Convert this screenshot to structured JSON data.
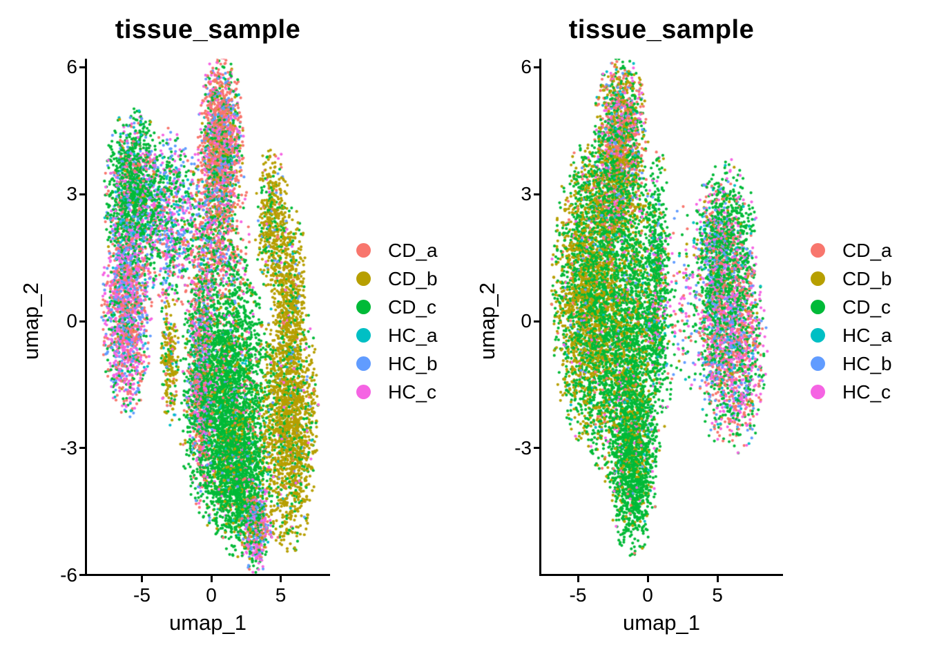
{
  "figure": {
    "background": "#ffffff"
  },
  "series": [
    {
      "label": "CD_a",
      "color": "#F8766D"
    },
    {
      "label": "CD_b",
      "color": "#B79F00"
    },
    {
      "label": "CD_c",
      "color": "#00BA38"
    },
    {
      "label": "HC_a",
      "color": "#00BFC4"
    },
    {
      "label": "HC_b",
      "color": "#619CFF"
    },
    {
      "label": "HC_c",
      "color": "#F564E3"
    }
  ],
  "chart_data": [
    {
      "type": "scatter",
      "title": "tissue_sample",
      "xlabel": "umap_1",
      "ylabel": "umap_2",
      "xlim": [
        -9.0,
        8.6
      ],
      "ylim": [
        -6.1,
        6.2
      ],
      "x_ticks": [
        -5,
        0,
        5
      ],
      "y_ticks": [
        6,
        3,
        0,
        -3,
        -6
      ],
      "grid": false,
      "legend_position": "right",
      "point_radius_px": 2.1,
      "clusters": [
        {
          "name": "left-lobe-upper",
          "cx": -5.6,
          "cy": 3.0,
          "sx": 0.95,
          "sy": 0.9,
          "n": 1500,
          "weights": [
            8,
            2,
            58,
            5,
            11,
            16
          ]
        },
        {
          "name": "left-lobe-lower",
          "cx": -6.1,
          "cy": 0.2,
          "sx": 0.8,
          "sy": 1.1,
          "n": 1500,
          "weights": [
            28,
            1,
            16,
            4,
            20,
            31
          ]
        },
        {
          "name": "left-mid-bridge",
          "cx": -3.1,
          "cy": 2.3,
          "sx": 0.85,
          "sy": 1.0,
          "n": 700,
          "weights": [
            14,
            2,
            36,
            6,
            22,
            20
          ]
        },
        {
          "name": "center-spike",
          "cx": 0.7,
          "cy": 4.3,
          "sx": 0.72,
          "sy": 0.9,
          "n": 1400,
          "weights": [
            46,
            6,
            18,
            2,
            13,
            15
          ]
        },
        {
          "name": "center-upper-mix",
          "cx": 0.2,
          "cy": 2.1,
          "sx": 1.15,
          "sy": 1.0,
          "n": 1000,
          "weights": [
            34,
            6,
            26,
            4,
            14,
            16
          ]
        },
        {
          "name": "olive-arm-upper",
          "cx": 4.4,
          "cy": 2.4,
          "sx": 0.55,
          "sy": 0.8,
          "n": 450,
          "weights": [
            5,
            70,
            18,
            1,
            3,
            3
          ]
        },
        {
          "name": "olive-arm-lower",
          "cx": 5.6,
          "cy": 0.7,
          "sx": 0.6,
          "sy": 0.9,
          "n": 500,
          "weights": [
            3,
            78,
            13,
            1,
            2,
            3
          ]
        },
        {
          "name": "central-green-mass",
          "cx": 1.0,
          "cy": -1.7,
          "sx": 1.5,
          "sy": 1.5,
          "n": 3200,
          "weights": [
            3,
            9,
            81,
            1,
            2,
            4
          ]
        },
        {
          "name": "green-mass-bottom",
          "cx": 1.9,
          "cy": -3.7,
          "sx": 1.05,
          "sy": 0.85,
          "n": 1100,
          "weights": [
            2,
            15,
            79,
            1,
            1,
            2
          ]
        },
        {
          "name": "olive-right-mass",
          "cx": 5.6,
          "cy": -2.3,
          "sx": 0.95,
          "sy": 1.4,
          "n": 1900,
          "weights": [
            2,
            76,
            17,
            1,
            2,
            2
          ]
        },
        {
          "name": "pink-fringe",
          "cx": -0.75,
          "cy": -1.3,
          "sx": 0.45,
          "sy": 1.4,
          "n": 650,
          "weights": [
            32,
            3,
            17,
            5,
            16,
            27
          ]
        },
        {
          "name": "bottom-tip",
          "cx": 3.2,
          "cy": -4.9,
          "sx": 0.55,
          "sy": 0.5,
          "n": 480,
          "weights": [
            20,
            8,
            22,
            6,
            20,
            24
          ]
        },
        {
          "name": "olive-stripe-left",
          "cx": -3.0,
          "cy": -0.9,
          "sx": 0.3,
          "sy": 0.7,
          "n": 230,
          "weights": [
            5,
            68,
            16,
            2,
            4,
            5
          ]
        }
      ]
    },
    {
      "type": "scatter",
      "title": "tissue_sample",
      "xlabel": "umap_1",
      "ylabel": "umap_2",
      "xlim": [
        -7.7,
        9.6
      ],
      "ylim": [
        -5.9,
        6.2
      ],
      "x_ticks": [
        -5,
        0,
        5
      ],
      "y_ticks": [
        6,
        3,
        0,
        -3
      ],
      "grid": false,
      "legend_position": "right",
      "point_radius_px": 2.1,
      "clusters": [
        {
          "name": "apex-mixed",
          "cx": -1.9,
          "cy": 4.5,
          "sx": 0.85,
          "sy": 0.8,
          "n": 1200,
          "weights": [
            26,
            22,
            33,
            3,
            7,
            9
          ]
        },
        {
          "name": "upper-mid",
          "cx": -2.4,
          "cy": 2.9,
          "sx": 1.15,
          "sy": 0.75,
          "n": 950,
          "weights": [
            11,
            30,
            49,
            2,
            3,
            5
          ]
        },
        {
          "name": "left-flank-olive",
          "cx": -4.4,
          "cy": 0.6,
          "sx": 1.1,
          "sy": 1.6,
          "n": 2300,
          "weights": [
            2,
            48,
            46,
            1,
            1,
            2
          ]
        },
        {
          "name": "core-green",
          "cx": -1.6,
          "cy": -0.5,
          "sx": 1.5,
          "sy": 1.7,
          "n": 2900,
          "weights": [
            2,
            22,
            71,
            1,
            1,
            3
          ]
        },
        {
          "name": "bottom-taper",
          "cx": -1.1,
          "cy": -3.4,
          "sx": 0.8,
          "sy": 0.95,
          "n": 1150,
          "weights": [
            1,
            10,
            85,
            1,
            1,
            2
          ]
        },
        {
          "name": "middle-finger",
          "cx": 0.7,
          "cy": 1.2,
          "sx": 0.42,
          "sy": 1.3,
          "n": 550,
          "weights": [
            4,
            6,
            74,
            3,
            5,
            8
          ]
        },
        {
          "name": "right-lobe-top",
          "cx": 5.5,
          "cy": 1.8,
          "sx": 1.05,
          "sy": 0.9,
          "n": 1150,
          "weights": [
            10,
            4,
            61,
            3,
            9,
            13
          ]
        },
        {
          "name": "right-lobe-core",
          "cx": 6.3,
          "cy": -0.6,
          "sx": 1.0,
          "sy": 1.15,
          "n": 1400,
          "weights": [
            27,
            3,
            27,
            4,
            16,
            23
          ]
        },
        {
          "name": "right-lobe-inner",
          "cx": 4.7,
          "cy": -0.1,
          "sx": 0.5,
          "sy": 1.2,
          "n": 420,
          "weights": [
            20,
            3,
            34,
            5,
            15,
            23
          ]
        },
        {
          "name": "bridge-sparse",
          "cx": 2.7,
          "cy": 0.3,
          "sx": 0.8,
          "sy": 1.1,
          "n": 160,
          "weights": [
            14,
            6,
            31,
            8,
            17,
            24
          ]
        }
      ]
    }
  ]
}
